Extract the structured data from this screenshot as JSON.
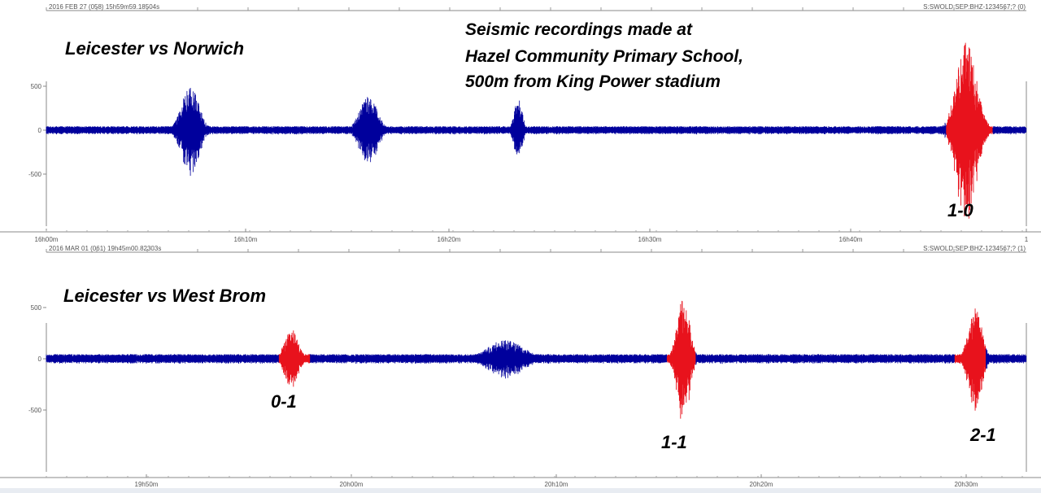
{
  "colors": {
    "trace": "#00009c",
    "event": "#e8121c",
    "axis": "#555555",
    "background": "#ffffff"
  },
  "annotation": {
    "lines": [
      "Seismic recordings made at",
      "Hazel Community Primary School,",
      "500m from King Power stadium"
    ]
  },
  "chart_data": [
    {
      "type": "line",
      "title": "Leicester  vs  Norwich",
      "header_left": "2016 FEB 27 (058)  15h59m59.18504s",
      "header_right": "S:SWOLD:SEP:BHZ-1234567;? (0)",
      "xlabel": "",
      "ylabel": "",
      "x_unit": "minutes",
      "xlim": [
        0,
        49
      ],
      "ylim": [
        -550,
        550
      ],
      "y_ticks": [
        500,
        0,
        -500
      ],
      "y_tick_labels": [
        "500",
        "0",
        "-500"
      ],
      "x_ticks": [
        0,
        10,
        20,
        30,
        40,
        49
      ],
      "x_tick_labels": [
        "16h00m",
        "16h10m",
        "16h20m",
        "16h30m",
        "16h40m",
        "1"
      ],
      "baseline_noise": 45,
      "bursts": [
        {
          "x": 7.2,
          "width": 1.0,
          "amplitude": 500,
          "goal": false
        },
        {
          "x": 16.1,
          "width": 1.0,
          "amplitude": 400,
          "goal": false
        },
        {
          "x": 23.6,
          "width": 0.5,
          "amplitude": 350,
          "goal": false
        },
        {
          "x": 46.0,
          "x_start": 45.0,
          "x_end": 47.3,
          "amplitude": 1000,
          "goal": true,
          "score": "1-0"
        }
      ]
    },
    {
      "type": "line",
      "title": "Leicester vs West Brom",
      "header_left": "2016 MAR 01 (061)  19h45m00.82303s",
      "header_right": "S:SWOLD:SEP:BHZ-1234567;? (1)",
      "xlabel": "",
      "ylabel": "",
      "x_unit": "minutes",
      "xlim": [
        0,
        48
      ],
      "ylim": [
        -600,
        600
      ],
      "y_ticks": [
        500,
        0,
        -500
      ],
      "y_tick_labels": [
        "500",
        "0",
        "-500"
      ],
      "x_ticks": [
        5,
        15,
        25,
        35,
        45
      ],
      "x_tick_labels": [
        "19h50m",
        "20h00m",
        "20h10m",
        "20h20m",
        "20h30m"
      ],
      "baseline_noise": 45,
      "bursts": [
        {
          "x": 22.5,
          "width": 2.0,
          "amplitude": 190,
          "goal": false
        },
        {
          "x": 12.0,
          "x_start": 11.4,
          "x_end": 12.9,
          "amplitude": 300,
          "goal": true,
          "score": "0-1"
        },
        {
          "x": 31.2,
          "x_start": 30.4,
          "x_end": 31.8,
          "amplitude": 600,
          "goal": true,
          "score": "1-1"
        },
        {
          "x": 45.5,
          "x_start": 44.5,
          "x_end": 46.0,
          "amplitude": 500,
          "goal": true,
          "score": "2-1"
        }
      ]
    }
  ]
}
